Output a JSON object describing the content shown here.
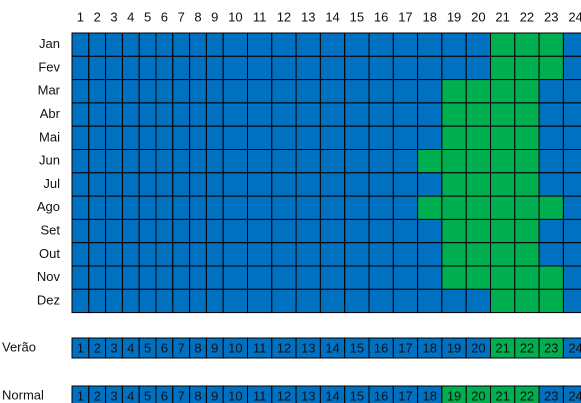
{
  "hours": [
    1,
    2,
    3,
    4,
    5,
    6,
    7,
    8,
    9,
    10,
    11,
    12,
    13,
    14,
    15,
    16,
    17,
    18,
    19,
    20,
    21,
    22,
    23,
    24
  ],
  "color": "#0070c0",
  "peak_color": "#00b050",
  "months": [
    {
      "label": "Jan",
      "peak": [
        21,
        22,
        23
      ]
    },
    {
      "label": "Fev",
      "peak": [
        21,
        22,
        23
      ]
    },
    {
      "label": "Mar",
      "peak": [
        19,
        20,
        21,
        22
      ]
    },
    {
      "label": "Abr",
      "peak": [
        19,
        20,
        21,
        22
      ]
    },
    {
      "label": "Mai",
      "peak": [
        19,
        20,
        21,
        22
      ]
    },
    {
      "label": "Jun",
      "peak": [
        18,
        19,
        20,
        21,
        22
      ]
    },
    {
      "label": "Jul",
      "peak": [
        19,
        20,
        21,
        22
      ]
    },
    {
      "label": "Ago",
      "peak": [
        18,
        19,
        20,
        21,
        22,
        23
      ]
    },
    {
      "label": "Set",
      "peak": [
        19,
        20,
        21,
        22
      ]
    },
    {
      "label": "Out",
      "peak": [
        19,
        20,
        21,
        22
      ]
    },
    {
      "label": "Nov",
      "peak": [
        19,
        20,
        21,
        22,
        23
      ]
    },
    {
      "label": "Dez",
      "peak": [
        21,
        22,
        23
      ]
    }
  ],
  "schedules": [
    {
      "label": "Verão",
      "peak": [
        21,
        22,
        23
      ]
    },
    {
      "label": "Normal",
      "peak": [
        19,
        20,
        21,
        22
      ]
    }
  ]
}
